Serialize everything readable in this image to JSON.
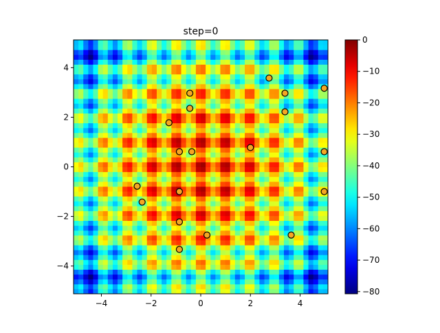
{
  "chart_data": {
    "type": "heatmap",
    "title": "step=0",
    "xlabel": "",
    "ylabel": "",
    "xlim": [
      -5.12,
      5.12
    ],
    "ylim": [
      -5.12,
      5.12
    ],
    "xticks": [
      -4,
      -2,
      0,
      2,
      4
    ],
    "yticks": [
      -4,
      -2,
      0,
      2,
      4
    ],
    "xtick_labels": [
      "−4",
      "−2",
      "0",
      "2",
      "4"
    ],
    "ytick_labels": [
      "−4",
      "−2",
      "0",
      "2",
      "4"
    ],
    "heatmap": {
      "function": "negative rastrigin: -(20 + x^2 - 10cos(2πx) + y^2 - 10cos(2πy))",
      "grid_start": -5.12,
      "grid_step": 0.2,
      "grid_count": 52,
      "colormap": "jet",
      "vmin": -80.7,
      "vmax": 0
    },
    "colorbar": {
      "ticks": [
        0,
        -10,
        -20,
        -30,
        -40,
        -50,
        -60,
        -70,
        -80
      ],
      "tick_labels": [
        "0",
        "−10",
        "−20",
        "−30",
        "−40",
        "−50",
        "−60",
        "−70",
        "−80"
      ]
    },
    "scatter": {
      "color": "#f5a623",
      "edgecolor": "#000000",
      "points": [
        [
          2.75,
          3.58
        ],
        [
          -0.44,
          2.97
        ],
        [
          3.39,
          2.97
        ],
        [
          4.97,
          3.17
        ],
        [
          -0.44,
          2.36
        ],
        [
          3.39,
          2.22
        ],
        [
          -1.28,
          1.78
        ],
        [
          2.0,
          0.78
        ],
        [
          -0.86,
          0.61
        ],
        [
          -0.36,
          0.61
        ],
        [
          4.97,
          0.61
        ],
        [
          -2.56,
          -0.78
        ],
        [
          -0.86,
          -1.0
        ],
        [
          4.97,
          -1.0
        ],
        [
          -2.36,
          -1.42
        ],
        [
          -0.86,
          -2.22
        ],
        [
          0.25,
          -2.75
        ],
        [
          3.64,
          -2.75
        ],
        [
          -0.86,
          -3.33
        ]
      ]
    }
  }
}
